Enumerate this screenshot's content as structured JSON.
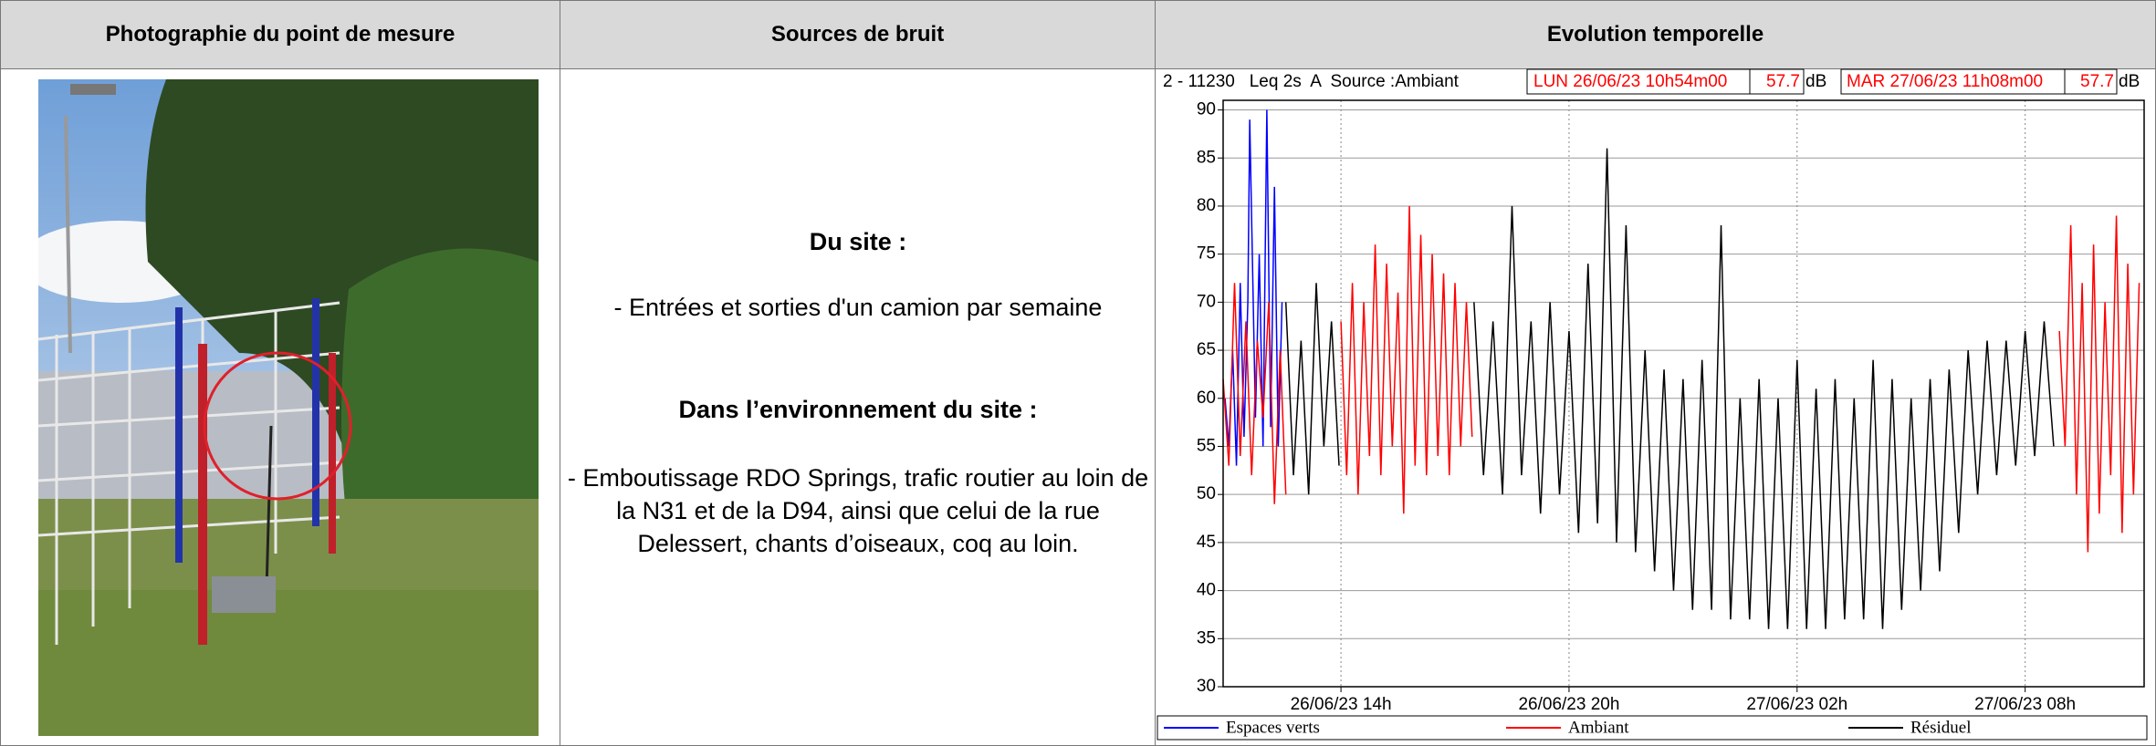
{
  "table": {
    "headers": [
      "Photographie du point de mesure",
      "Sources de bruit",
      "Evolution temporelle"
    ],
    "sources": {
      "site_title": "Du site :",
      "site_text": "- Entrées et sorties d'un camion par semaine",
      "env_title": "Dans l’environnement du site :",
      "env_text": "- Emboutissage RDO Springs, trafic routier au loin de la N31 et de la D94, ainsi que celui de la rue Delessert, chants d’oiseaux, coq au loin."
    }
  },
  "chart_data": {
    "type": "line",
    "header_info": "2 - 11230   Leq 2s  A  Source :Ambiant",
    "start_label": "LUN 26/06/23 10h54m00",
    "start_value": 57.7,
    "unit": "dB",
    "end_label": "MAR 27/06/23 11h08m00",
    "end_value": 57.7,
    "xlim": [
      10.9,
      35.13
    ],
    "xticks": [
      {
        "value": 14,
        "label": "26/06/23 14h"
      },
      {
        "value": 20,
        "label": "26/06/23 20h"
      },
      {
        "value": 26,
        "label": "27/06/23 02h"
      },
      {
        "value": 32,
        "label": "27/06/23 08h"
      }
    ],
    "ylim": [
      30,
      91
    ],
    "yticks": [
      30,
      35,
      40,
      45,
      50,
      55,
      60,
      65,
      70,
      75,
      80,
      85,
      90
    ],
    "grid": true,
    "series": [
      {
        "name": "Espaces verts",
        "color": "#0000ff",
        "x": [
          10.95,
          11.05,
          11.15,
          11.25,
          11.35,
          11.45,
          11.55,
          11.6,
          11.75,
          11.85,
          11.95,
          12.05,
          12.15,
          12.25,
          12.35,
          12.45
        ],
        "values": [
          60,
          55,
          65,
          53,
          72,
          56,
          70,
          89,
          58,
          75,
          55,
          90,
          57,
          82,
          55,
          70
        ]
      },
      {
        "name": "Ambiant",
        "color": "#ff0000",
        "x": [
          10.9,
          11.05,
          11.2,
          11.35,
          11.5,
          11.65,
          11.8,
          11.95,
          12.1,
          12.25,
          12.4,
          12.55,
          13.0,
          14,
          14.15,
          14.3,
          14.45,
          14.6,
          14.75,
          14.9,
          15.05,
          15.2,
          15.35,
          15.5,
          15.65,
          15.8,
          15.95,
          16.1,
          16.25,
          16.4,
          16.55,
          16.7,
          16.85,
          17,
          17.15,
          17.3,
          17.45,
          25.0,
          32.9,
          33.05,
          33.2,
          33.35,
          33.5,
          33.65,
          33.8,
          33.95,
          34.1,
          34.25,
          34.4,
          34.55,
          34.7,
          34.85,
          35.0
        ],
        "values": [
          62,
          53,
          72,
          54,
          68,
          52,
          66,
          58,
          70,
          49,
          65,
          50,
          null,
          68,
          52,
          72,
          50,
          70,
          54,
          76,
          52,
          74,
          55,
          71,
          48,
          80,
          53,
          77,
          52,
          75,
          54,
          73,
          52,
          72,
          55,
          70,
          56,
          null,
          67,
          55,
          78,
          50,
          72,
          44,
          76,
          48,
          70,
          52,
          79,
          46,
          74,
          50,
          72
        ]
      },
      {
        "name": "Résiduel",
        "color": "#000000",
        "x": [
          12.55,
          12.75,
          12.95,
          13.15,
          13.35,
          13.55,
          13.75,
          13.95,
          15.0,
          17.5,
          17.75,
          18,
          18.25,
          18.5,
          18.75,
          19,
          19.25,
          19.5,
          19.75,
          20,
          20.25,
          20.5,
          20.75,
          21,
          21.25,
          21.5,
          21.75,
          22,
          22.25,
          22.5,
          22.75,
          23,
          23.25,
          23.5,
          23.75,
          24,
          24.25,
          24.5,
          24.75,
          25,
          25.25,
          25.5,
          25.75,
          26,
          26.25,
          26.5,
          26.75,
          27,
          27.25,
          27.5,
          27.75,
          28,
          28.25,
          28.5,
          28.75,
          29,
          29.25,
          29.5,
          29.75,
          30,
          30.25,
          30.5,
          30.75,
          31,
          31.25,
          31.5,
          31.75,
          32,
          32.25,
          32.5,
          32.75
        ],
        "values": [
          70,
          52,
          66,
          50,
          72,
          55,
          68,
          53,
          null,
          70,
          52,
          68,
          50,
          80,
          52,
          68,
          48,
          70,
          50,
          67,
          46,
          74,
          47,
          86,
          45,
          78,
          44,
          65,
          42,
          63,
          40,
          62,
          38,
          64,
          38,
          78,
          37,
          60,
          37,
          62,
          36,
          60,
          36,
          64,
          36,
          61,
          36,
          62,
          37,
          60,
          37,
          64,
          36,
          62,
          38,
          60,
          40,
          62,
          42,
          63,
          46,
          65,
          50,
          66,
          52,
          66,
          53,
          67,
          54,
          68,
          55
        ]
      }
    ]
  }
}
